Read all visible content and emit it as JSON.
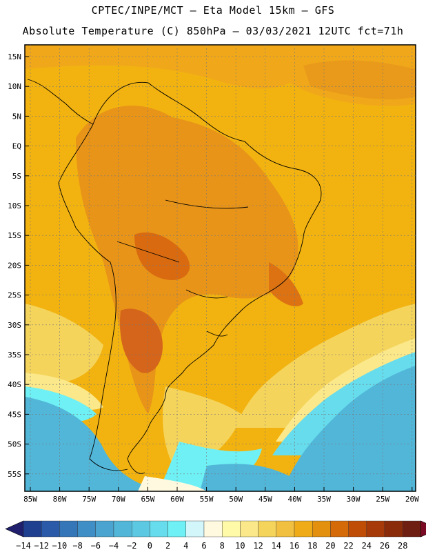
{
  "header": {
    "line1": "CPTEC/INPE/MCT –  Eta Model 15km – GFS",
    "line2": "Absolute Temperature (C) 850hPa – 03/03/2021 12UTC fct=71h"
  },
  "map": {
    "lat_labels": [
      "15N",
      "10N",
      "5N",
      "EQ",
      "5S",
      "10S",
      "15S",
      "20S",
      "25S",
      "30S",
      "35S",
      "40S",
      "45S",
      "50S",
      "55S"
    ],
    "lon_labels": [
      "85W",
      "80W",
      "75W",
      "70W",
      "65W",
      "60W",
      "55W",
      "50W",
      "45W",
      "40W",
      "35W",
      "30W",
      "25W",
      "20W"
    ]
  },
  "colorbar": {
    "labels": [
      "-14",
      "-12",
      "-10",
      "-8",
      "-6",
      "-4",
      "-2",
      "0",
      "2",
      "4",
      "6",
      "8",
      "10",
      "12",
      "14",
      "16",
      "18",
      "20",
      "22",
      "24",
      "26",
      "28"
    ],
    "colors": [
      "#1f3f8f",
      "#2a5aa8",
      "#3476b8",
      "#3f8fc6",
      "#4aa4cf",
      "#52b6d8",
      "#5cc8e2",
      "#66dcec",
      "#6ff0f4",
      "#d2f6fa",
      "#fff9e0",
      "#fffaa8",
      "#fbe88a",
      "#f5d45c",
      "#f2c040",
      "#f0ac18",
      "#e2900e",
      "#d56a08",
      "#c04d06",
      "#a63a08",
      "#8a2c0a",
      "#6e1f12"
    ],
    "low_arrow": "#1f1f6e",
    "high_arrow": "#7a0a24"
  }
}
